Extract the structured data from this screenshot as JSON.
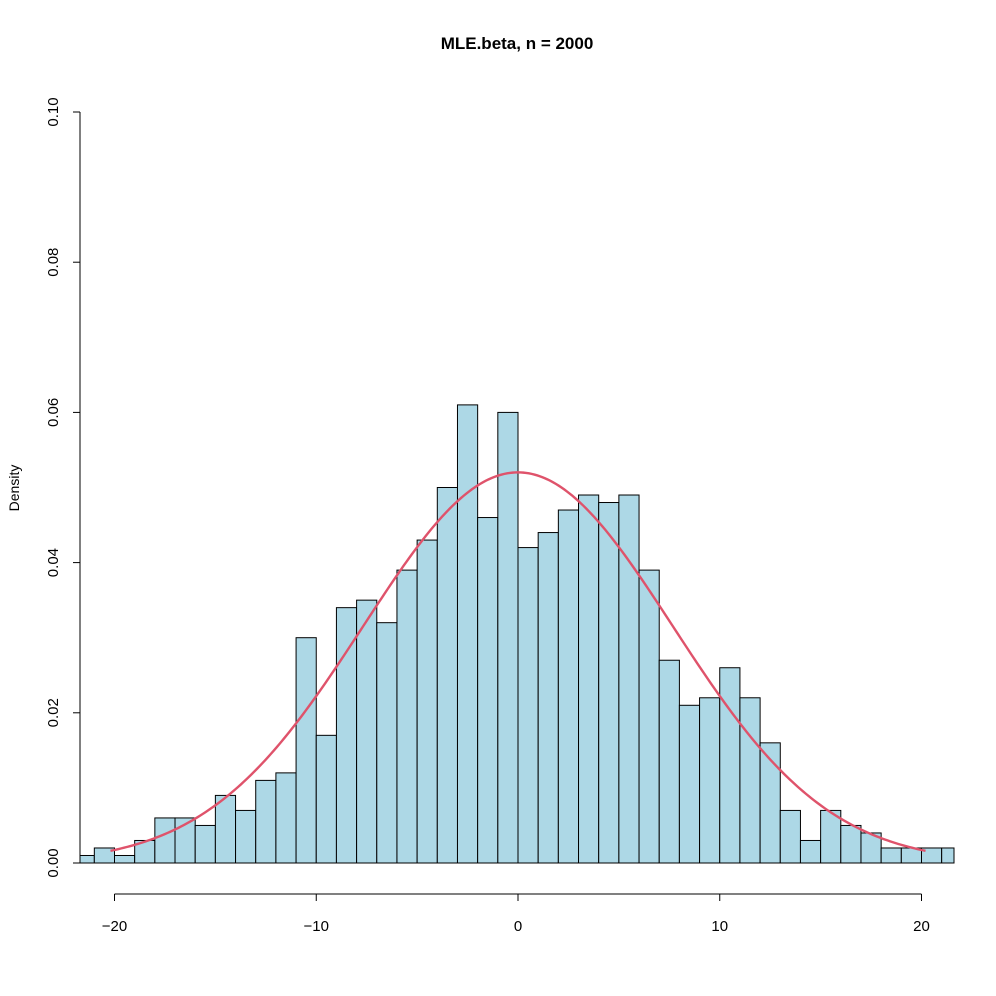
{
  "chart_data": {
    "type": "bar",
    "title": "MLE.beta, n = 2000",
    "xlabel": "",
    "ylabel": "Density",
    "xlim": [
      -21.6,
      21.6
    ],
    "ylim": [
      0,
      0.1
    ],
    "bin_width": 1,
    "bin_start": -21,
    "bins": [
      {
        "x0": -21,
        "x1": -20,
        "density": 0.002
      },
      {
        "x0": -20,
        "x1": -19,
        "density": 0.001
      },
      {
        "x0": -19,
        "x1": -18,
        "density": 0.003
      },
      {
        "x0": -18,
        "x1": -17,
        "density": 0.006
      },
      {
        "x0": -17,
        "x1": -16,
        "density": 0.006
      },
      {
        "x0": -16,
        "x1": -15,
        "density": 0.005
      },
      {
        "x0": -15,
        "x1": -14,
        "density": 0.009
      },
      {
        "x0": -14,
        "x1": -13,
        "density": 0.007
      },
      {
        "x0": -13,
        "x1": -12,
        "density": 0.011
      },
      {
        "x0": -12,
        "x1": -11,
        "density": 0.012
      },
      {
        "x0": -11,
        "x1": -10,
        "density": 0.03
      },
      {
        "x0": -10,
        "x1": -9,
        "density": 0.017
      },
      {
        "x0": -9,
        "x1": -8,
        "density": 0.034
      },
      {
        "x0": -8,
        "x1": -7,
        "density": 0.035
      },
      {
        "x0": -7,
        "x1": -6,
        "density": 0.032
      },
      {
        "x0": -6,
        "x1": -5,
        "density": 0.039
      },
      {
        "x0": -5,
        "x1": -4,
        "density": 0.043
      },
      {
        "x0": -4,
        "x1": -3,
        "density": 0.05
      },
      {
        "x0": -3,
        "x1": -2,
        "density": 0.061
      },
      {
        "x0": -2,
        "x1": -1,
        "density": 0.046
      },
      {
        "x0": -1,
        "x1": 0,
        "density": 0.06
      },
      {
        "x0": 0,
        "x1": 1,
        "density": 0.042
      },
      {
        "x0": 1,
        "x1": 2,
        "density": 0.044
      },
      {
        "x0": 2,
        "x1": 3,
        "density": 0.047
      },
      {
        "x0": 3,
        "x1": 4,
        "density": 0.049
      },
      {
        "x0": 4,
        "x1": 5,
        "density": 0.048
      },
      {
        "x0": 5,
        "x1": 6,
        "density": 0.049
      },
      {
        "x0": 6,
        "x1": 7,
        "density": 0.039
      },
      {
        "x0": 7,
        "x1": 8,
        "density": 0.027
      },
      {
        "x0": 8,
        "x1": 9,
        "density": 0.021
      },
      {
        "x0": 9,
        "x1": 10,
        "density": 0.022
      },
      {
        "x0": 10,
        "x1": 11,
        "density": 0.026
      },
      {
        "x0": 11,
        "x1": 12,
        "density": 0.022
      },
      {
        "x0": 12,
        "x1": 13,
        "density": 0.016
      },
      {
        "x0": 13,
        "x1": 14,
        "density": 0.007
      },
      {
        "x0": 14,
        "x1": 15,
        "density": 0.003
      },
      {
        "x0": 15,
        "x1": 16,
        "density": 0.007
      },
      {
        "x0": 16,
        "x1": 17,
        "density": 0.005
      },
      {
        "x0": 17,
        "x1": 18,
        "density": 0.004
      },
      {
        "x0": 18,
        "x1": 19,
        "density": 0.002
      },
      {
        "x0": 19,
        "x1": 20,
        "density": 0.002
      },
      {
        "x0": 20,
        "x1": 21,
        "density": 0.002
      },
      {
        "x0": 21,
        "x1": 22,
        "density": 0.002
      }
    ],
    "extra_bins": [
      {
        "x0": -22,
        "x1": -21,
        "density": 0.001
      }
    ],
    "curve": {
      "type": "normal-density",
      "mean": 0,
      "sd": 7.67,
      "x_range": [
        -20.2,
        20.2
      ],
      "color": "#DF536B"
    },
    "x_ticks": [
      -20,
      -10,
      0,
      10,
      20
    ],
    "x_tick_labels": [
      "−20",
      "−10",
      "0",
      "10",
      "20"
    ],
    "y_ticks": [
      0,
      0.02,
      0.04,
      0.06,
      0.08,
      0.1
    ],
    "y_tick_labels": [
      "0.00",
      "0.02",
      "0.04",
      "0.06",
      "0.08",
      "0.10"
    ],
    "bar_fill": "#ADD8E6",
    "bar_stroke": "#000000",
    "grid": false,
    "legend": "none"
  }
}
